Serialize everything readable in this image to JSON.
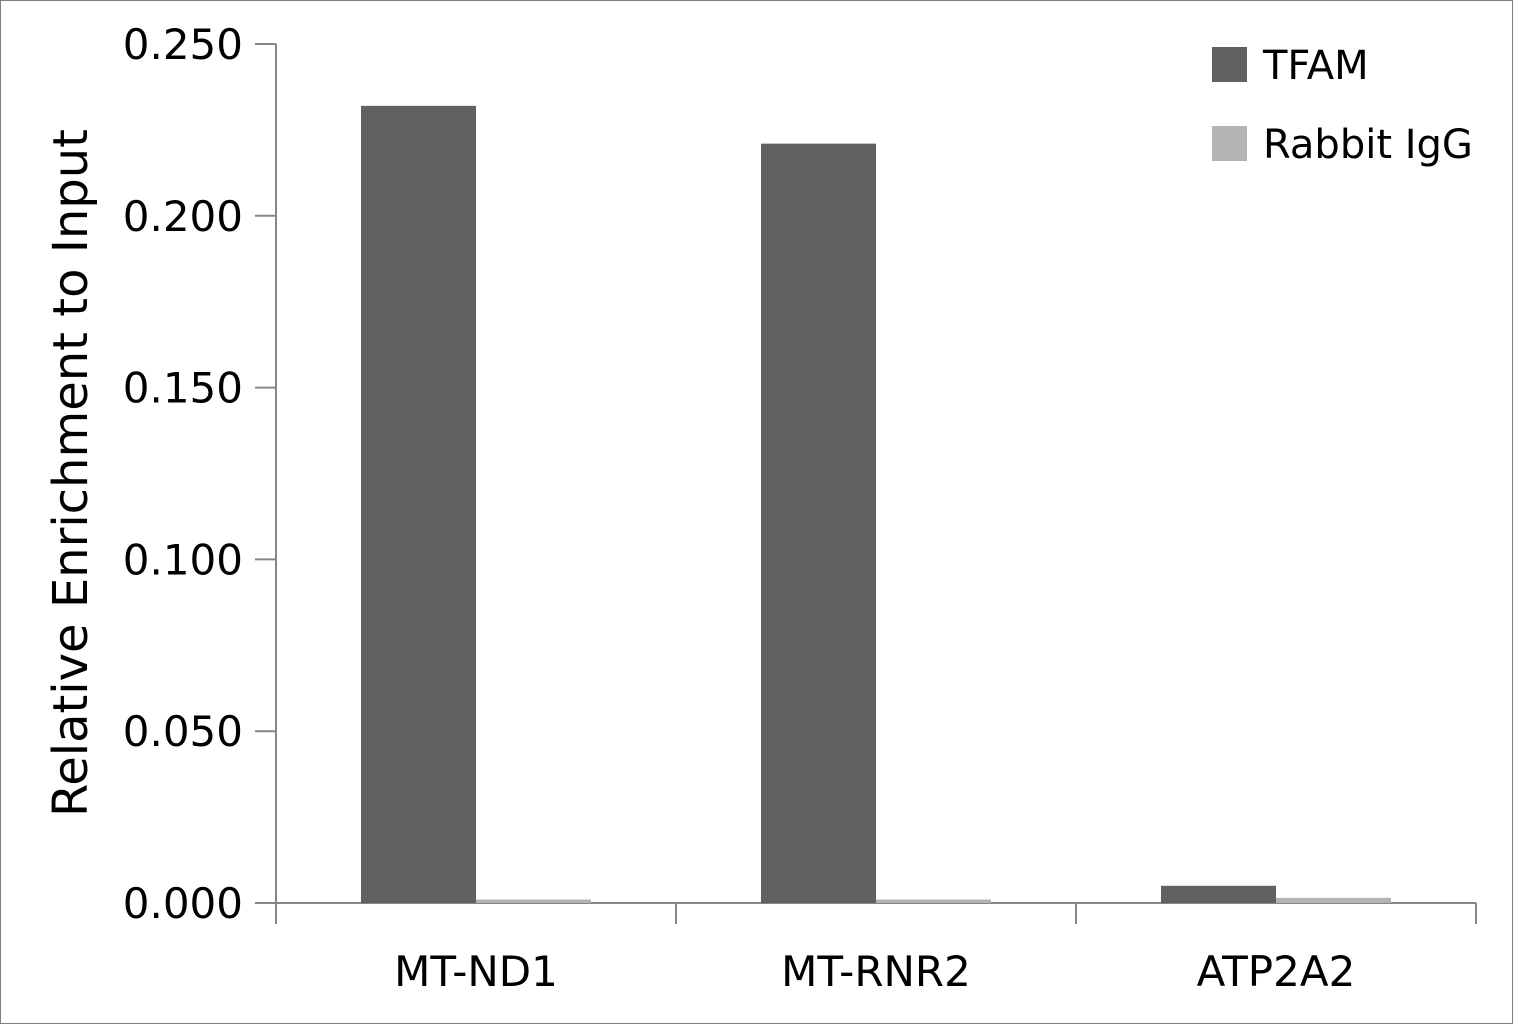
{
  "chart_data": {
    "type": "bar",
    "title": "",
    "xlabel": "",
    "ylabel": "Relative Enrichment to Input",
    "categories": [
      "MT-ND1",
      "MT-RNR2",
      "ATP2A2"
    ],
    "series": [
      {
        "name": "TFAM",
        "color": "#616161",
        "values": [
          0.232,
          0.221,
          0.005
        ]
      },
      {
        "name": "Rabbit IgG",
        "color": "#b3b3b3",
        "values": [
          0.001,
          0.001,
          0.0015
        ]
      }
    ],
    "ylim": [
      0,
      0.25
    ],
    "yticks": [
      "0.000",
      "0.050",
      "0.100",
      "0.150",
      "0.200",
      "0.250"
    ],
    "grid": false,
    "legend_position": "top-right"
  }
}
